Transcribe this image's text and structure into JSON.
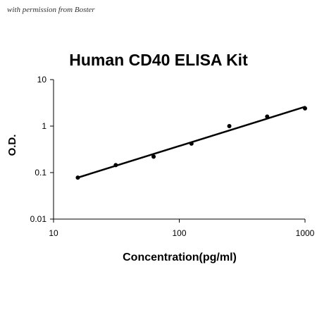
{
  "watermark": "with permission from Boster",
  "colors": {
    "line": "#000000",
    "points": "#000000",
    "background": "#ffffff"
  },
  "chart_data": {
    "type": "scatter",
    "title": "Human CD40 ELISA Kit",
    "xlabel": "Concentration(pg/ml)",
    "ylabel": "O.D.",
    "x_scale": "log",
    "y_scale": "log",
    "xlim": [
      10,
      1000
    ],
    "ylim": [
      0.01,
      10
    ],
    "x_ticks": [
      {
        "value": 10,
        "label": "10"
      },
      {
        "value": 100,
        "label": "100"
      },
      {
        "value": 1000,
        "label": "1000"
      }
    ],
    "y_ticks": [
      {
        "value": 0.01,
        "label": "0.01"
      },
      {
        "value": 0.1,
        "label": "0.1"
      },
      {
        "value": 1,
        "label": "1"
      },
      {
        "value": 10,
        "label": "10"
      }
    ],
    "grid": false,
    "legend": "none",
    "series": [
      {
        "x": [
          15.6,
          31.25,
          62.5,
          125,
          250,
          500,
          1000
        ],
        "y": [
          0.078,
          0.145,
          0.22,
          0.42,
          1.0,
          1.6,
          2.4
        ]
      }
    ],
    "fit": {
      "type": "power",
      "from": [
        15.6,
        0.078
      ],
      "to": [
        1000,
        2.6
      ]
    }
  }
}
